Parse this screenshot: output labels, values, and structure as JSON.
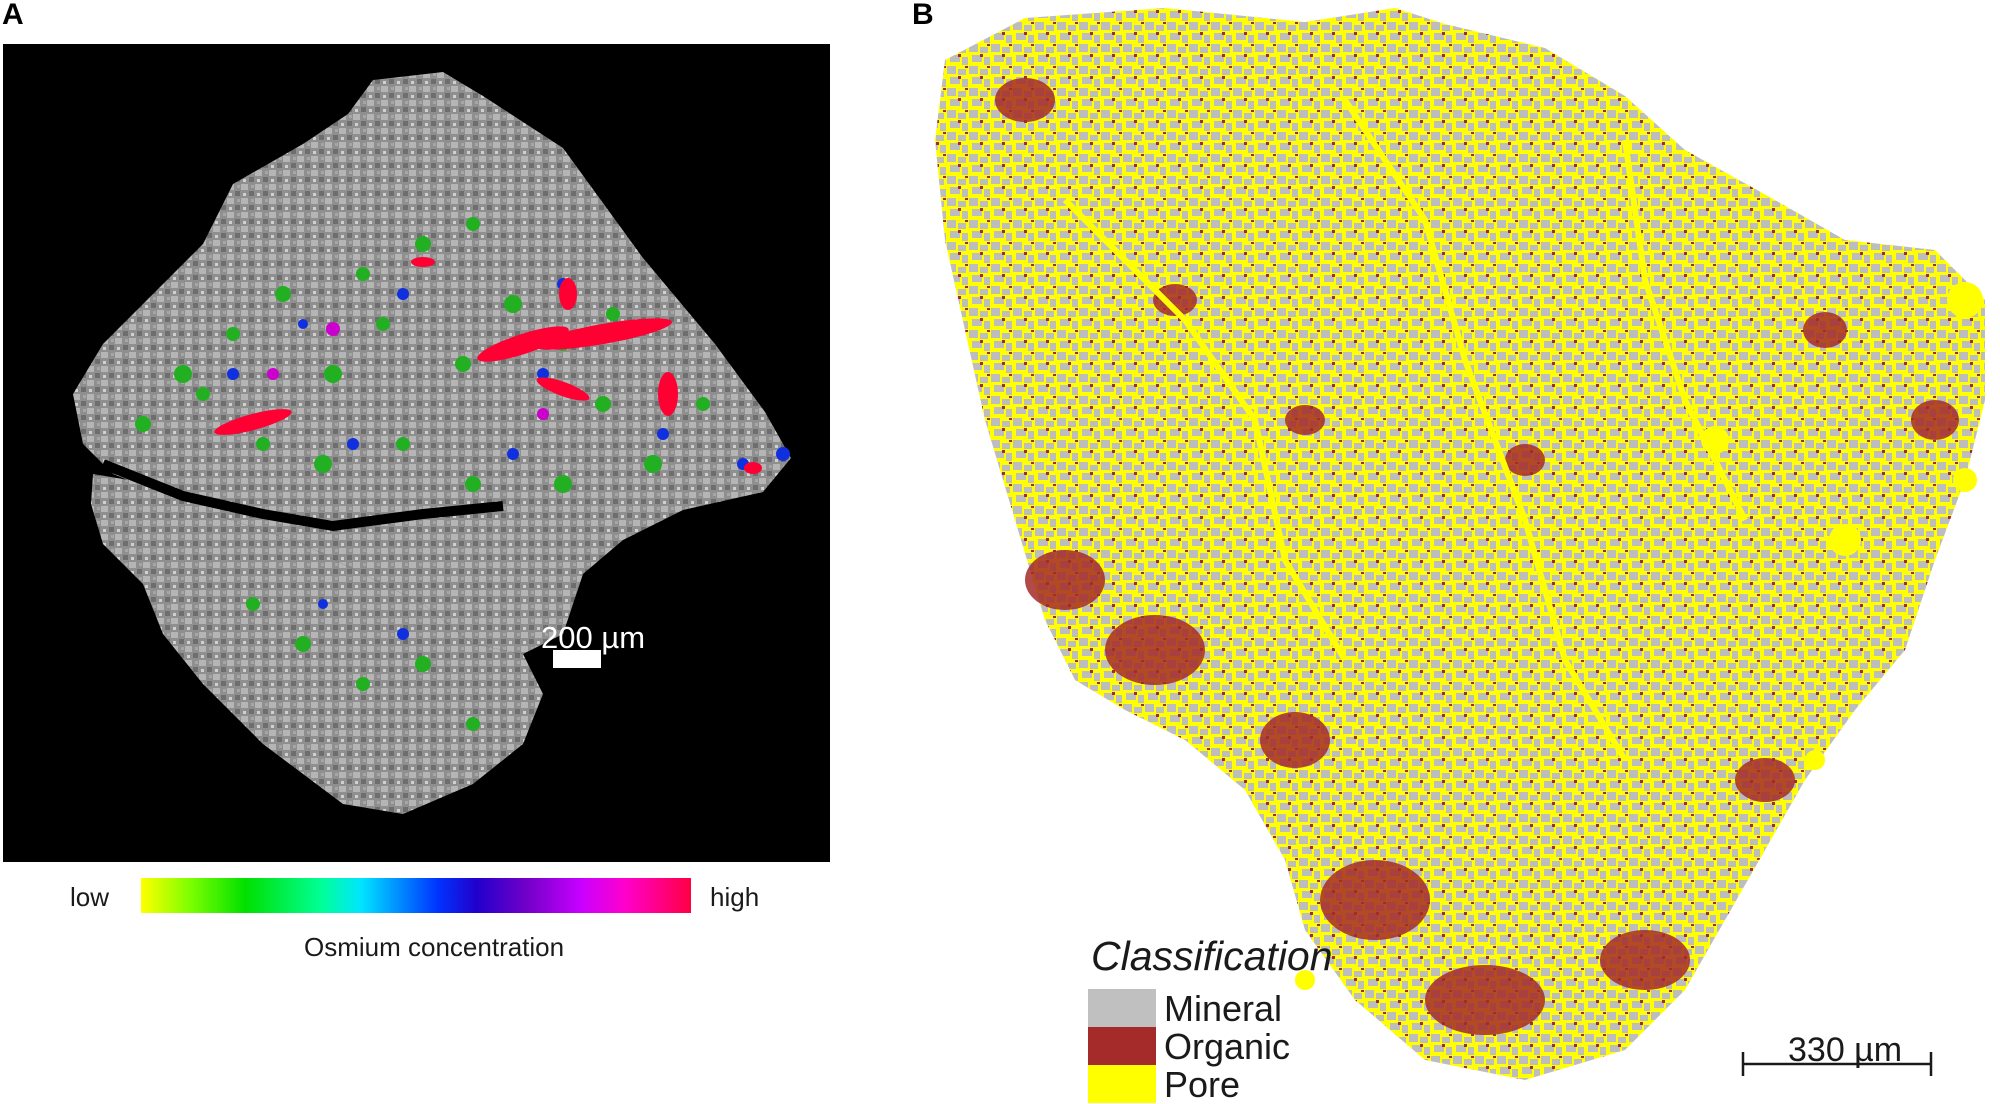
{
  "panel_a": {
    "label": "A",
    "scale_bar_text": "200 µm",
    "colorbar": {
      "low_label": "low",
      "high_label": "high",
      "caption": "Osmium concentration"
    },
    "colors": {
      "background": "#000000",
      "high": "#ff0033",
      "low": "#ffff00"
    }
  },
  "panel_b": {
    "label": "B",
    "legend": {
      "title": "Classification",
      "items": [
        {
          "label": "Mineral",
          "color": "#c0c0c0"
        },
        {
          "label": "Organic",
          "color": "#a52a2a"
        },
        {
          "label": "Pore",
          "color": "#ffff00"
        }
      ]
    },
    "scale_bar_text": "330  µm"
  }
}
